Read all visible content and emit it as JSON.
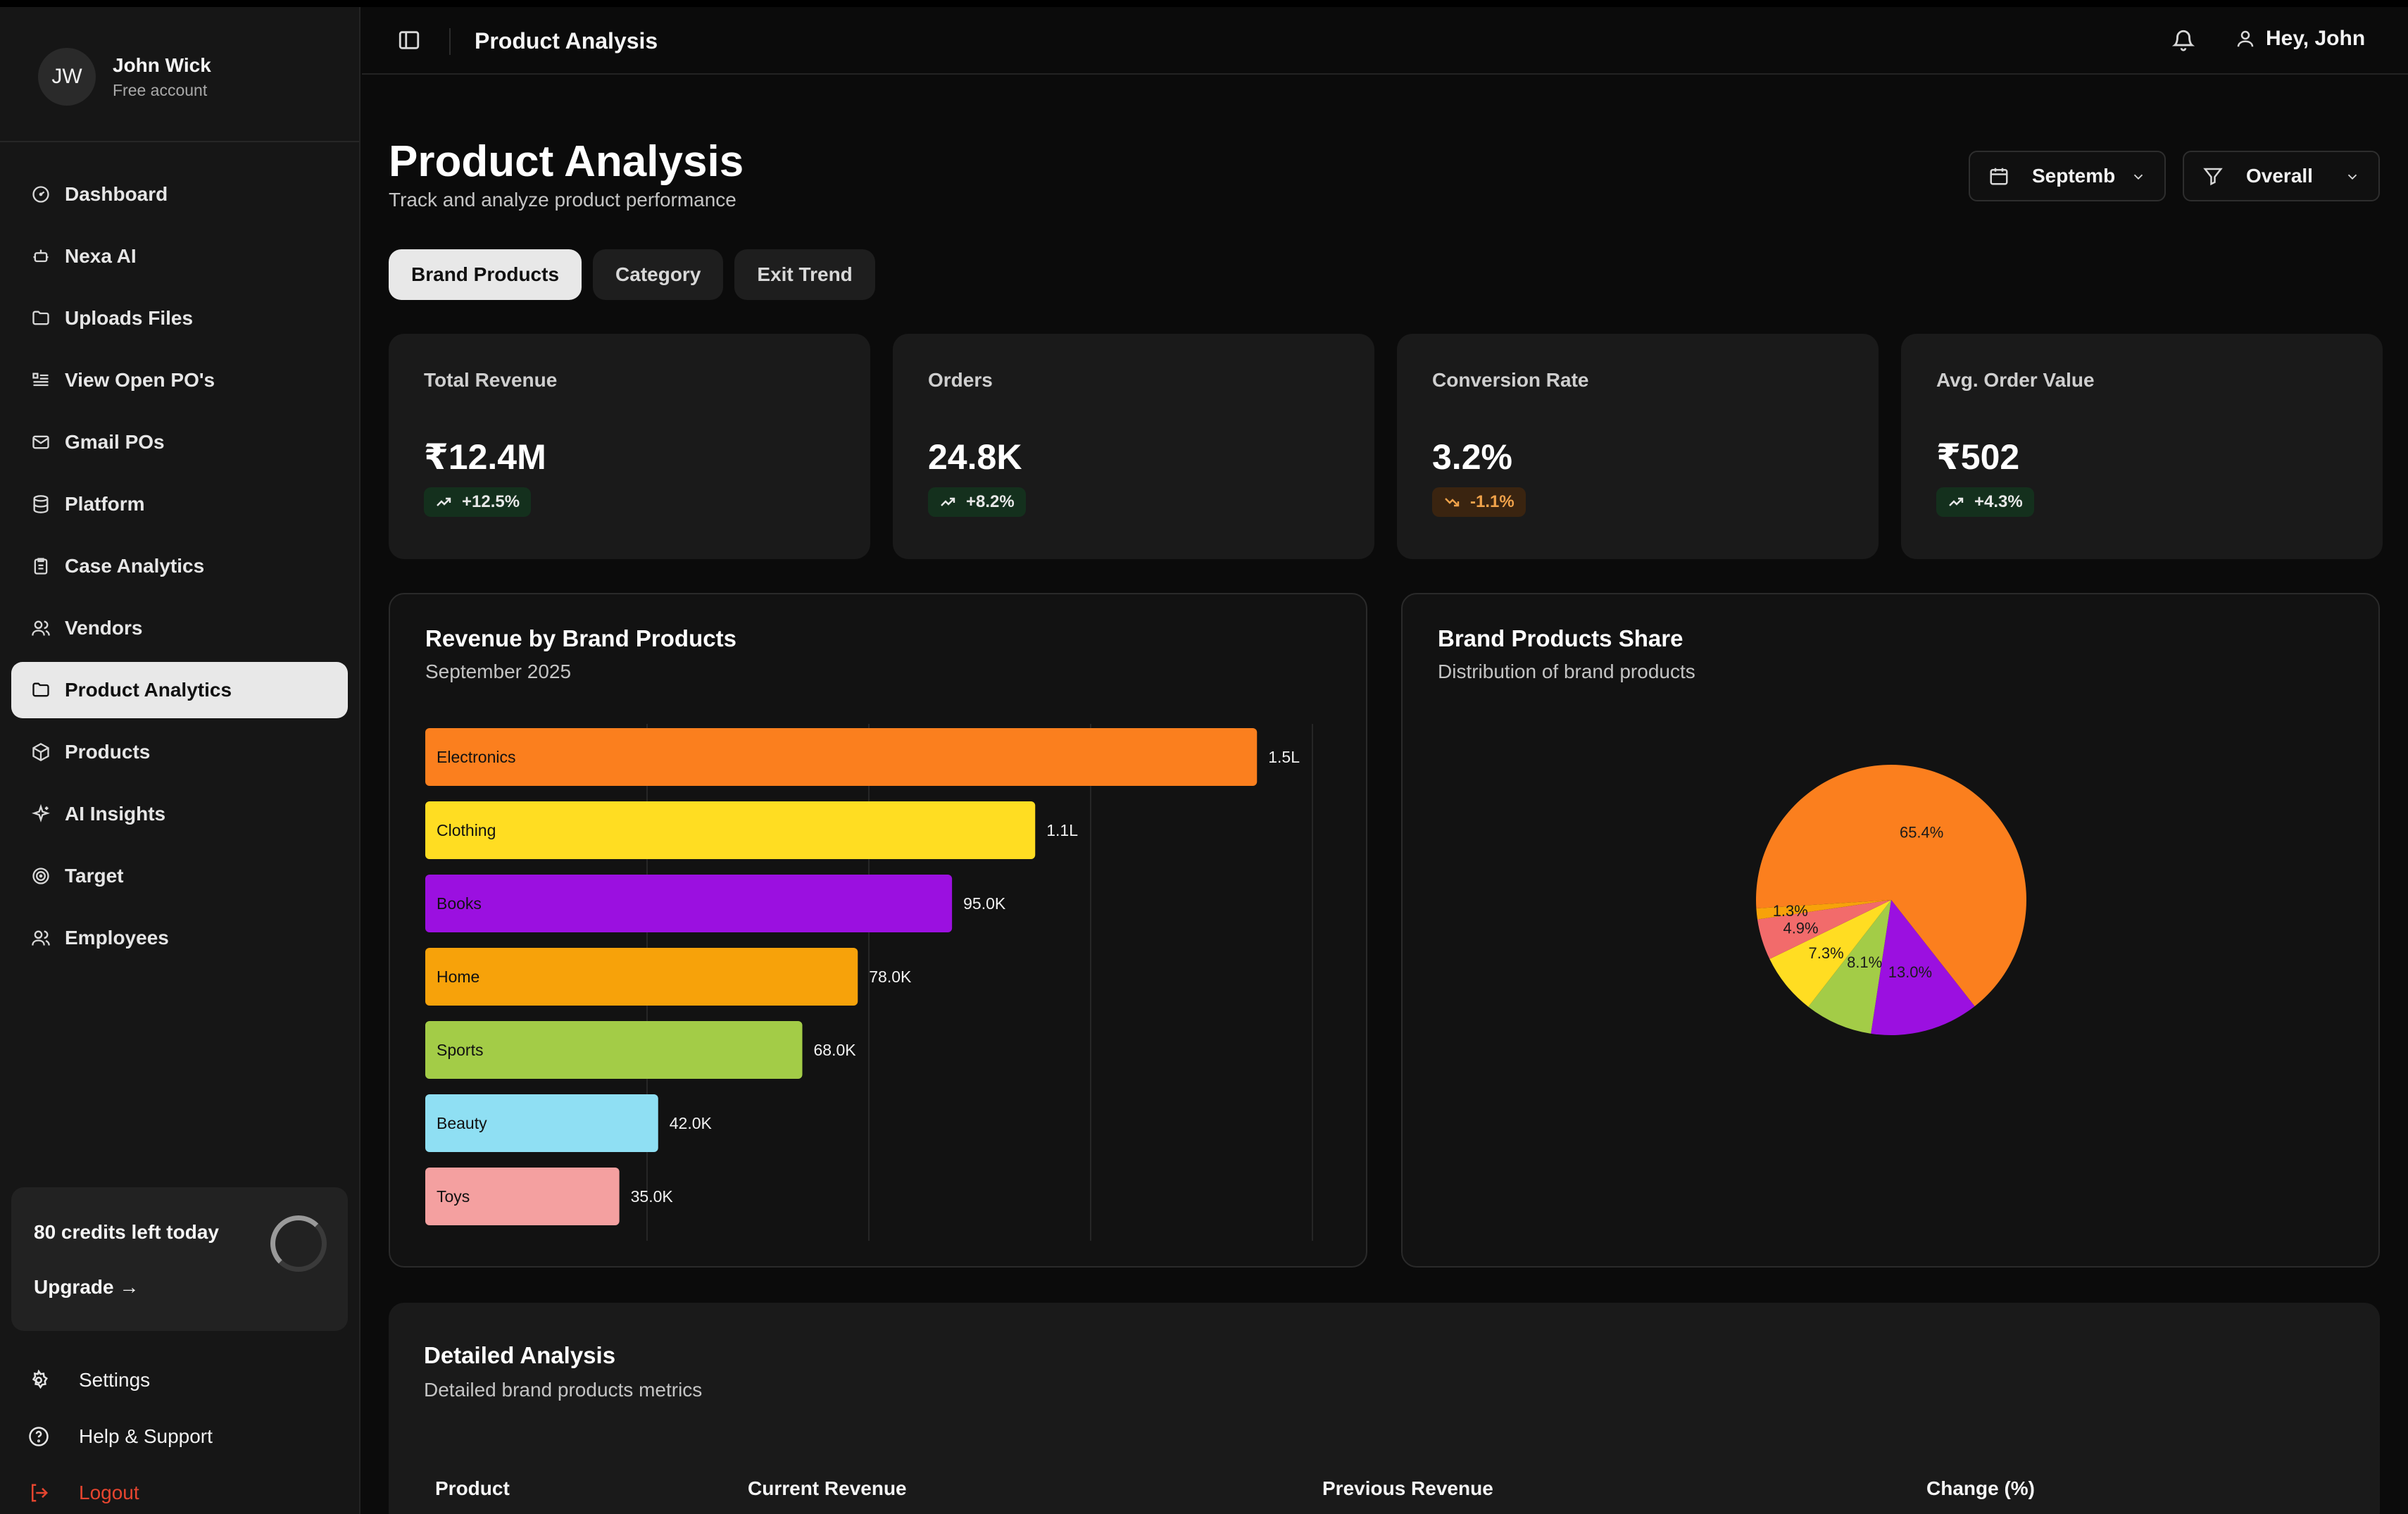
{
  "user": {
    "initials": "JW",
    "name": "John Wick",
    "plan": "Free account"
  },
  "nav": [
    {
      "label": "Dashboard",
      "icon": "dashboard-icon"
    },
    {
      "label": "Nexa AI",
      "icon": "bot-icon"
    },
    {
      "label": "Uploads Files",
      "icon": "folder-icon"
    },
    {
      "label": "View Open PO's",
      "icon": "list-icon"
    },
    {
      "label": "Gmail POs",
      "icon": "mail-icon"
    },
    {
      "label": "Platform",
      "icon": "database-icon"
    },
    {
      "label": "Case Analytics",
      "icon": "clipboard-icon"
    },
    {
      "label": "Vendors",
      "icon": "users-icon"
    },
    {
      "label": "Product Analytics",
      "icon": "folder-icon",
      "active": true
    },
    {
      "label": "Products",
      "icon": "box-icon"
    },
    {
      "label": "AI Insights",
      "icon": "sparkles-icon"
    },
    {
      "label": "Target",
      "icon": "target-icon"
    },
    {
      "label": "Employees",
      "icon": "users-icon"
    }
  ],
  "credits": {
    "text": "80 credits left today",
    "upgrade": "Upgrade →"
  },
  "bottom": {
    "settings": "Settings",
    "help": "Help & Support",
    "logout": "Logout"
  },
  "topbar": {
    "title": "Product Analysis",
    "greeting": "Hey, John"
  },
  "header": {
    "title": "Product Analysis",
    "subtitle": "Track and analyze product performance"
  },
  "filters": {
    "month": "Septemb",
    "scope": "Overall"
  },
  "tabs": [
    {
      "label": "Brand Products",
      "active": true
    },
    {
      "label": "Category"
    },
    {
      "label": "Exit Trend"
    }
  ],
  "metrics": [
    {
      "label": "Total Revenue",
      "value": "₹12.4M",
      "change": "+12.5%",
      "trend": "up"
    },
    {
      "label": "Orders",
      "value": "24.8K",
      "change": "+8.2%",
      "trend": "up"
    },
    {
      "label": "Conversion Rate",
      "value": "3.2%",
      "change": "-1.1%",
      "trend": "down"
    },
    {
      "label": "Avg. Order Value",
      "value": "₹502",
      "change": "+4.3%",
      "trend": "up"
    }
  ],
  "colors": {
    "orange": "#fb7f1e",
    "yellow": "#ffdd22",
    "purple": "#9b10e0",
    "amber": "#f7a20a",
    "green": "#a3cc47",
    "cyan": "#8fdff3",
    "pink": "#f4a0a0",
    "coral": "#f26b6b"
  },
  "chart_data": [
    {
      "type": "bar",
      "orientation": "horizontal",
      "title": "Revenue by Brand Products",
      "subtitle": "September 2025",
      "categories": [
        "Electronics",
        "Clothing",
        "Books",
        "Home",
        "Sports",
        "Beauty",
        "Toys"
      ],
      "values": [
        150000,
        110000,
        95000,
        78000,
        68000,
        42000,
        35000
      ],
      "value_labels": [
        "1.5L",
        "1.1L",
        "95.0K",
        "78.0K",
        "68.0K",
        "42.0K",
        "35.0K"
      ],
      "colors": [
        "#fb7f1e",
        "#ffdd22",
        "#9b10e0",
        "#f7a20a",
        "#a3cc47",
        "#8fdff3",
        "#f4a0a0"
      ],
      "xlim": [
        0,
        160000
      ],
      "grid": true
    },
    {
      "type": "pie",
      "title": "Brand Products Share",
      "subtitle": "Distribution of brand products",
      "slices": [
        {
          "label": "65.4%",
          "value": 65.4,
          "color": "#fb7f1e"
        },
        {
          "label": "13.0%",
          "value": 13.0,
          "color": "#9b10e0"
        },
        {
          "label": "8.1%",
          "value": 8.1,
          "color": "#a3cc47"
        },
        {
          "label": "7.3%",
          "value": 7.3,
          "color": "#ffdd22"
        },
        {
          "label": "4.9%",
          "value": 4.9,
          "color": "#f26b6b"
        },
        {
          "label": "1.3%",
          "value": 1.3,
          "color": "#f7a20a"
        }
      ]
    }
  ],
  "detail": {
    "title": "Detailed Analysis",
    "subtitle": "Detailed brand products metrics",
    "columns": [
      "Product",
      "Current Revenue",
      "Previous Revenue",
      "Change (%)"
    ]
  }
}
